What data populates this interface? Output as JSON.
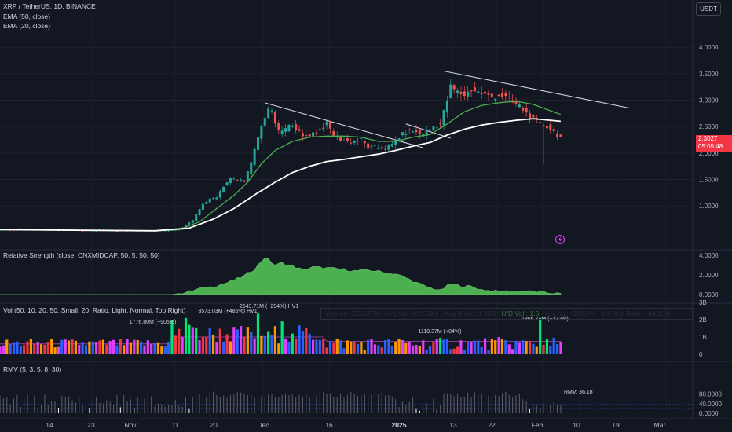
{
  "header": {
    "symbol_line": "XRP / TetherUS, 1D, BINANCE",
    "ema50_label": "EMA (50, close)",
    "ema20_label": "EMA (20, close)",
    "currency": "USDT"
  },
  "price_tag": {
    "price": "2.3027",
    "countdown": "05:05:48"
  },
  "panes": {
    "rs_label": "Relative Strength (close, CNXMIDCAP, 50, 5, 50, 50)",
    "vol_label": "Vol (50, 10, 20, 50, Small, 20, Ratio, Light, Normal, Top Right)",
    "rmv_label": "RMV (5, 3, 5, 8, 30)",
    "rmv_value": "RMV: 36.18"
  },
  "vol_stats": {
    "volume": "Volume : 262.37M",
    "avg_vol": "Avg Vol : 413.39M",
    "avg_dollar_vol": "Avg $ Vol : 1.33B",
    "ud_vol": "U/D Vol : 1.6",
    "pct_chg": "% Chg : -36.53%",
    "run_rate": "Vol Run Rate : -44.15%"
  },
  "vol_annotations": [
    "1776.80M (+905%)",
    "3573.03M (+486%) HV1",
    "2543.71M (+294%) HV1",
    "1110.37M (+84%)",
    "1866.71M (+332%)"
  ],
  "colors": {
    "up": "#26a69a",
    "down": "#ef5350",
    "ema20": "#4caf50",
    "ema50": "#ffffff",
    "rs_fill": "#4caf50",
    "vol_pink": "#e040fb",
    "vol_blue": "#2962ff",
    "vol_orange": "#ff9800",
    "vol_green": "#00e676",
    "vol_red": "#f23645",
    "background": "#131722"
  },
  "chart_data": {
    "type": "candlestick",
    "x_ticks": [
      "14",
      "23",
      "Nov",
      "11",
      "20",
      "Dec",
      "16",
      "2025",
      "13",
      "22",
      "Feb",
      "10",
      "19",
      "Mar"
    ],
    "price_axis": [
      "4.0000",
      "3.5000",
      "3.0000",
      "2.5000",
      "2.0000",
      "1.5000",
      "1.0000"
    ],
    "rs_axis": [
      "4.0000",
      "2.0000",
      "0.0000"
    ],
    "vol_axis": [
      "3B",
      "2B",
      "1B",
      "0"
    ],
    "rmv_axis": [
      "80.0000",
      "40.0000",
      "0.0000"
    ],
    "ylim": [
      0.2,
      4.3
    ],
    "price_path": [
      [
        0,
        0.55
      ],
      [
        20,
        0.54
      ],
      [
        35,
        0.53
      ],
      [
        45,
        0.52
      ],
      [
        52,
        0.55
      ],
      [
        53,
        0.6
      ],
      [
        56,
        0.72
      ],
      [
        59,
        1.05
      ],
      [
        61,
        1.12
      ],
      [
        63,
        1.18
      ],
      [
        65,
        1.38
      ],
      [
        67,
        1.52
      ],
      [
        69,
        1.48
      ],
      [
        71,
        1.48
      ],
      [
        73,
        1.8
      ],
      [
        75,
        2.3
      ],
      [
        77,
        2.7
      ],
      [
        78,
        2.85
      ],
      [
        79,
        2.75
      ],
      [
        81,
        2.4
      ],
      [
        83,
        2.45
      ],
      [
        85,
        2.55
      ],
      [
        88,
        2.3
      ],
      [
        90,
        2.35
      ],
      [
        93,
        2.45
      ],
      [
        95,
        2.55
      ],
      [
        97,
        2.35
      ],
      [
        99,
        2.25
      ],
      [
        102,
        2.22
      ],
      [
        105,
        2.25
      ],
      [
        107,
        2.1
      ],
      [
        110,
        2.1
      ],
      [
        112,
        2.1
      ],
      [
        114,
        2.15
      ],
      [
        116,
        2.3
      ],
      [
        118,
        2.4
      ],
      [
        120,
        2.42
      ],
      [
        122,
        2.35
      ],
      [
        124,
        2.4
      ],
      [
        126,
        2.5
      ],
      [
        128,
        2.55
      ],
      [
        130,
        3.0
      ],
      [
        131,
        3.25
      ],
      [
        133,
        3.15
      ],
      [
        135,
        3.1
      ],
      [
        137,
        3.2
      ],
      [
        139,
        3.15
      ],
      [
        141,
        3.1
      ],
      [
        143,
        3.05
      ],
      [
        145,
        3.1
      ],
      [
        147,
        3.05
      ],
      [
        149,
        2.95
      ],
      [
        151,
        2.9
      ],
      [
        153,
        2.75
      ],
      [
        155,
        2.62
      ],
      [
        157,
        2.55
      ],
      [
        159,
        2.5
      ],
      [
        160,
        2.45
      ],
      [
        162,
        2.35
      ],
      [
        163,
        2.3
      ]
    ],
    "ema20": [
      [
        0,
        0.55
      ],
      [
        45,
        0.53
      ],
      [
        52,
        0.55
      ],
      [
        58,
        0.7
      ],
      [
        63,
        0.95
      ],
      [
        68,
        1.2
      ],
      [
        72,
        1.45
      ],
      [
        76,
        1.8
      ],
      [
        80,
        2.05
      ],
      [
        85,
        2.22
      ],
      [
        90,
        2.3
      ],
      [
        95,
        2.32
      ],
      [
        100,
        2.32
      ],
      [
        105,
        2.3
      ],
      [
        110,
        2.22
      ],
      [
        115,
        2.22
      ],
      [
        120,
        2.3
      ],
      [
        125,
        2.35
      ],
      [
        130,
        2.55
      ],
      [
        135,
        2.78
      ],
      [
        140,
        2.9
      ],
      [
        145,
        2.95
      ],
      [
        150,
        2.98
      ],
      [
        155,
        2.92
      ],
      [
        160,
        2.8
      ],
      [
        163,
        2.73
      ]
    ],
    "ema50": [
      [
        0,
        0.55
      ],
      [
        45,
        0.53
      ],
      [
        55,
        0.58
      ],
      [
        62,
        0.75
      ],
      [
        68,
        0.95
      ],
      [
        75,
        1.25
      ],
      [
        80,
        1.45
      ],
      [
        85,
        1.63
      ],
      [
        90,
        1.75
      ],
      [
        95,
        1.84
      ],
      [
        100,
        1.88
      ],
      [
        105,
        1.93
      ],
      [
        110,
        1.98
      ],
      [
        115,
        2.05
      ],
      [
        120,
        2.13
      ],
      [
        125,
        2.2
      ],
      [
        130,
        2.34
      ],
      [
        135,
        2.45
      ],
      [
        140,
        2.53
      ],
      [
        145,
        2.58
      ],
      [
        150,
        2.62
      ],
      [
        155,
        2.65
      ],
      [
        160,
        2.62
      ],
      [
        163,
        2.6
      ]
    ],
    "trendlines": [
      {
        "from": [
          77,
          2.95
        ],
        "to": [
          123,
          2.1
        ]
      },
      {
        "from": [
          118,
          2.55
        ],
        "to": [
          131,
          2.28
        ]
      },
      {
        "from": [
          129,
          3.55
        ],
        "to": [
          183,
          2.85
        ]
      }
    ],
    "rs_values": [
      [
        0,
        0
      ],
      [
        50,
        0
      ],
      [
        54,
        0.2
      ],
      [
        58,
        0.6
      ],
      [
        63,
        0.9
      ],
      [
        67,
        1.3
      ],
      [
        71,
        1.9
      ],
      [
        74,
        2.6
      ],
      [
        77,
        3.8
      ],
      [
        80,
        3.0
      ],
      [
        82,
        3.2
      ],
      [
        85,
        2.9
      ],
      [
        88,
        2.5
      ],
      [
        91,
        2.8
      ],
      [
        95,
        2.7
      ],
      [
        99,
        2.6
      ],
      [
        103,
        2.4
      ],
      [
        107,
        2.5
      ],
      [
        111,
        2.3
      ],
      [
        115,
        2.1
      ],
      [
        118,
        1.7
      ],
      [
        121,
        1.2
      ],
      [
        124,
        0.8
      ],
      [
        128,
        0.4
      ],
      [
        131,
        1.1
      ],
      [
        134,
        0.9
      ],
      [
        137,
        0.8
      ],
      [
        140,
        0.5
      ],
      [
        145,
        0.3
      ],
      [
        150,
        0.35
      ],
      [
        155,
        0.3
      ],
      [
        160,
        0.15
      ],
      [
        163,
        0.1
      ]
    ]
  }
}
